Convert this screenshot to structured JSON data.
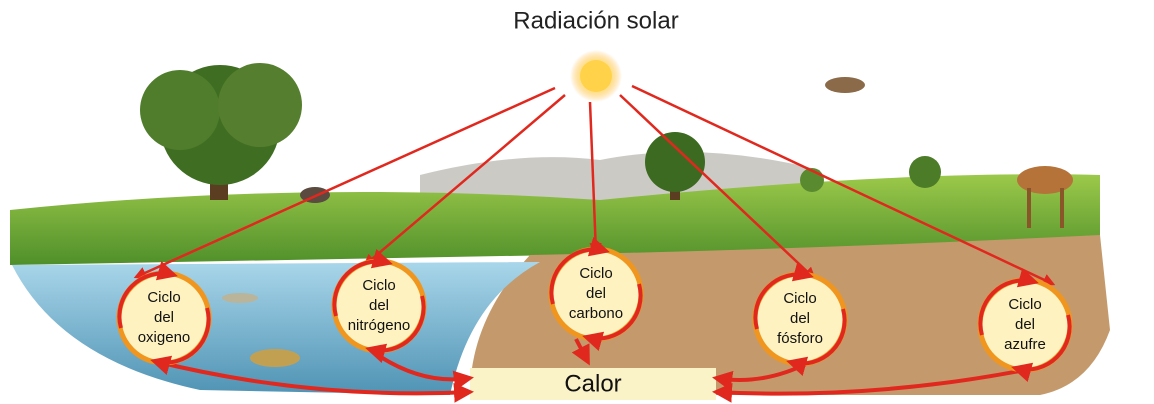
{
  "title": "Radiación solar",
  "nodes": [
    {
      "lines": [
        "Ciclo",
        "del",
        "oxigeno"
      ]
    },
    {
      "lines": [
        "Ciclo",
        "del",
        "nitrógeno"
      ]
    },
    {
      "lines": [
        "Ciclo",
        "del",
        "carbono"
      ]
    },
    {
      "lines": [
        "Ciclo",
        "del",
        "fósforo"
      ]
    },
    {
      "lines": [
        "Ciclo",
        "del",
        "azufre"
      ]
    }
  ],
  "sink": "Calor"
}
